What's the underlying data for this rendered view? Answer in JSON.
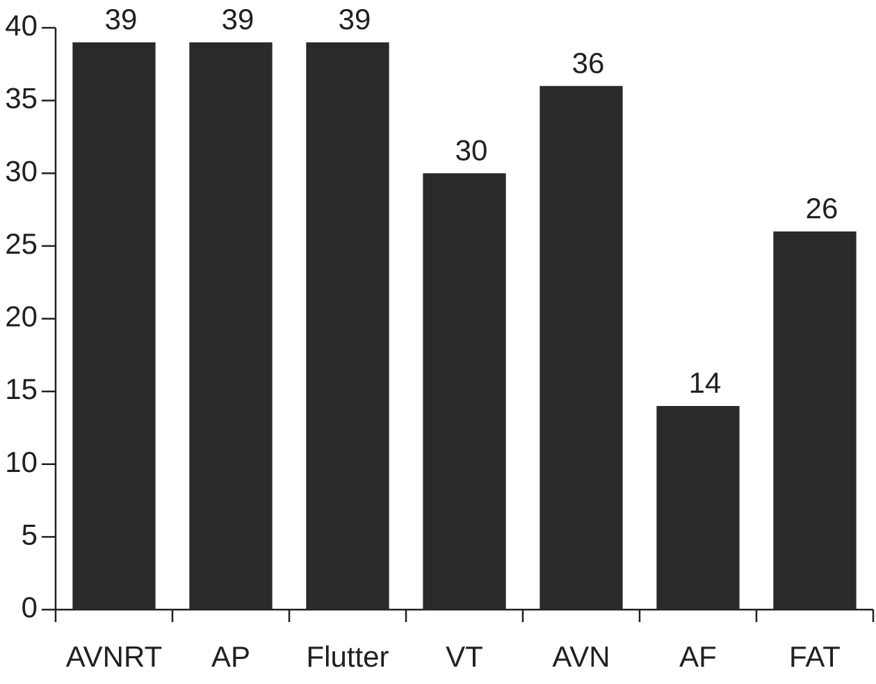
{
  "chart_data": {
    "type": "bar",
    "categories": [
      "AVNRT",
      "AP",
      "Flutter",
      "VT",
      "AVN",
      "AF",
      "FAT"
    ],
    "values": [
      39,
      39,
      39,
      30,
      36,
      14,
      26
    ],
    "color": "#2a2a2a",
    "ylim": [
      0,
      40
    ],
    "yticks": [
      0,
      5,
      10,
      15,
      20,
      25,
      30,
      35,
      40
    ],
    "grid": false
  }
}
